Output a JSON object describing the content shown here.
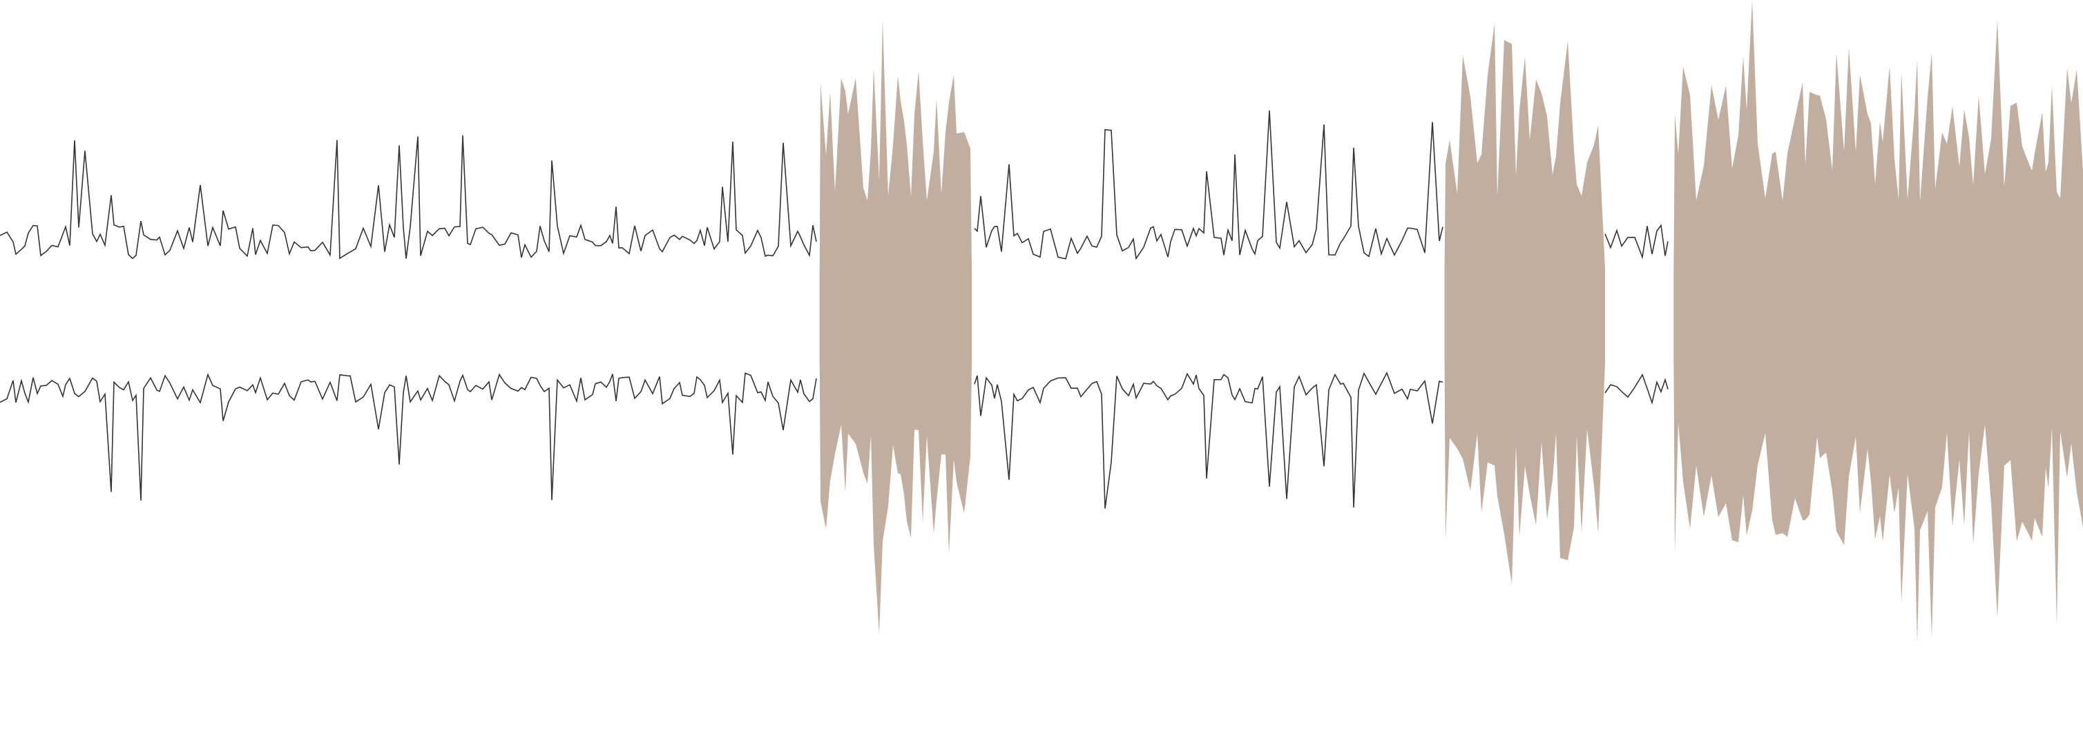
{
  "waveform": {
    "fill_color": "#c1ae9f",
    "line_color": "#333333",
    "background_color": "#ffffff",
    "selected_regions": [
      {
        "start": 0.3935,
        "end": 0.4665
      },
      {
        "start": 0.6935,
        "end": 0.7705
      },
      {
        "start": 0.8035,
        "end": 1.0
      }
    ]
  }
}
